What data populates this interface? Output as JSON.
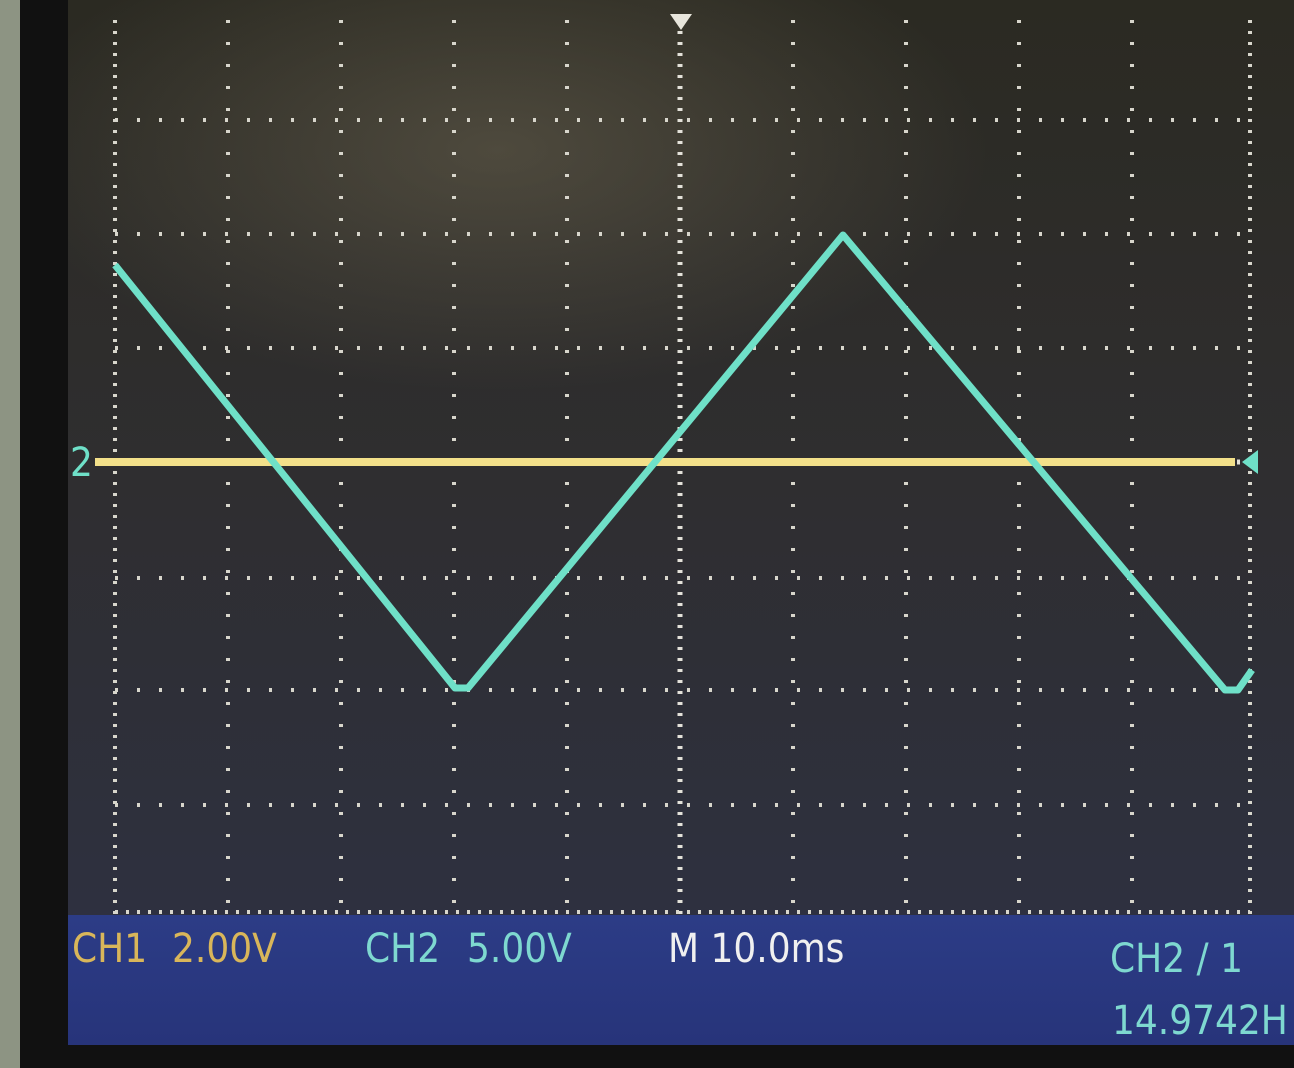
{
  "status": {
    "ch1_label": "CH1",
    "ch1_scale": "2.00V",
    "ch2_label": "CH2",
    "ch2_scale": "5.00V",
    "timebase": "M 10.0ms",
    "trigger": "CH2 / 1",
    "frequency": "14.9742H"
  },
  "markers": {
    "ch2_ground": "2"
  }
}
